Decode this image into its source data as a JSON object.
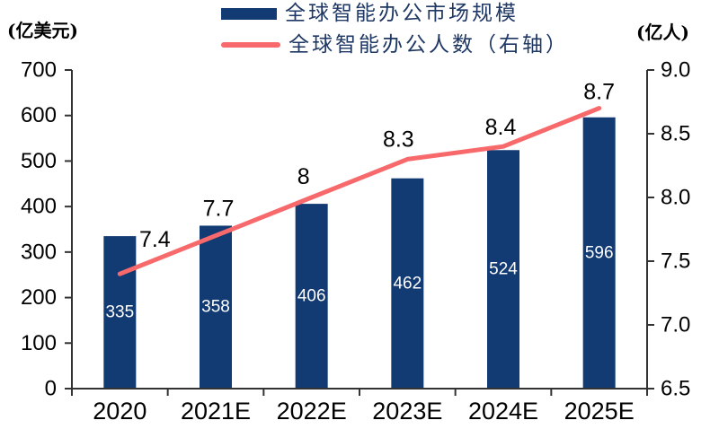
{
  "chart_data": {
    "type": "bar+line",
    "categories": [
      "2020",
      "2021E",
      "2022E",
      "2023E",
      "2024E",
      "2025E"
    ],
    "series": [
      {
        "name": "全球智能办公市场规模",
        "type": "bar",
        "axis": "left",
        "values": [
          335,
          358,
          406,
          462,
          524,
          596
        ],
        "data_labels": [
          "335",
          "358",
          "406",
          "462",
          "524",
          "596"
        ],
        "color": "#123A73",
        "label_color": "#FFFFFF"
      },
      {
        "name": "全球智能办公人数（右轴）",
        "type": "line",
        "axis": "right",
        "values": [
          7.4,
          7.7,
          8,
          8.3,
          8.4,
          8.7
        ],
        "data_labels": [
          "7.4",
          "7.7",
          "8",
          "8.3",
          "8.4",
          "8.7"
        ],
        "color": "#F8696B",
        "label_color": "#000000",
        "label_offsets": [
          [
            39,
            -38
          ],
          [
            3,
            -30
          ],
          [
            -9,
            -23
          ],
          [
            -10,
            -22
          ],
          [
            -3,
            -21
          ],
          [
            0,
            -18
          ]
        ]
      }
    ],
    "left_axis": {
      "unit": "(亿美元)",
      "min": 0,
      "max": 700,
      "step": 100,
      "tick_labels": [
        "0",
        "100",
        "200",
        "300",
        "400",
        "500",
        "600",
        "700"
      ]
    },
    "right_axis": {
      "unit": "(亿人)",
      "min": 6.5,
      "max": 9.0,
      "step": 0.5,
      "tick_labels": [
        "6.5",
        "7.0",
        "7.5",
        "8.0",
        "8.5",
        "9.0"
      ]
    },
    "legend_position": "top-center",
    "grid": false,
    "axis_color": "#333333",
    "text_color": "#000000",
    "legend_text_color": "#1F3864",
    "background": "#FFFFFF"
  }
}
